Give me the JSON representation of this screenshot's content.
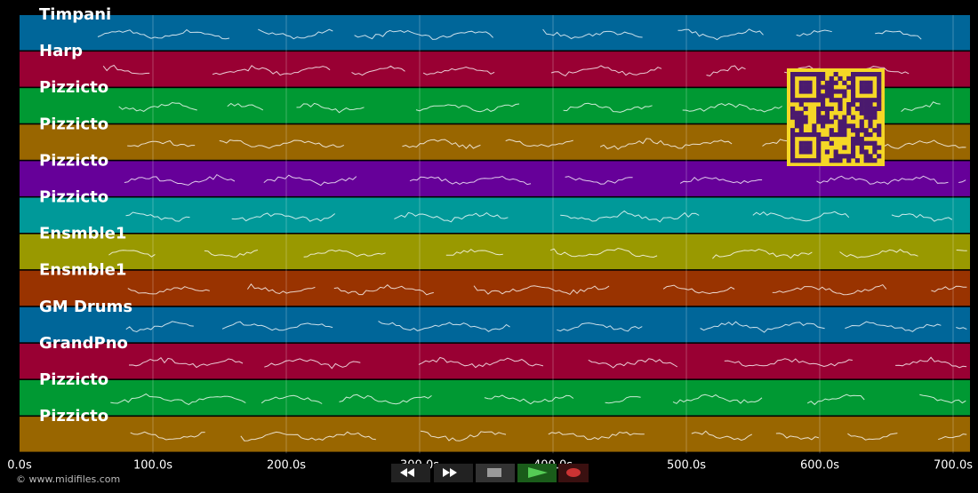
{
  "tracks": [
    {
      "name": "Timpani",
      "color": "#006699"
    },
    {
      "name": "Harp",
      "color": "#990033"
    },
    {
      "name": "Pizzicto",
      "color": "#009933"
    },
    {
      "name": "Pizzicto",
      "color": "#996600"
    },
    {
      "name": "Pizzicto",
      "color": "#660099"
    },
    {
      "name": "Pizzicto",
      "color": "#009999"
    },
    {
      "name": "Ensmble1",
      "color": "#999900"
    },
    {
      "name": "Ensmble1",
      "color": "#993300"
    },
    {
      "name": "GM Drums",
      "color": "#006699"
    },
    {
      "name": "GrandPno",
      "color": "#990033"
    },
    {
      "name": "Pizzicto",
      "color": "#009933"
    },
    {
      "name": "Pizzicto",
      "color": "#996600"
    }
  ],
  "time_axis": {
    "labels": [
      "0.0s",
      "100.0s",
      "200.0s",
      "300.0s",
      "400.0s",
      "500.0s",
      "600.0s",
      "700.0s"
    ]
  },
  "footer": "© www.midifiles.com"
}
